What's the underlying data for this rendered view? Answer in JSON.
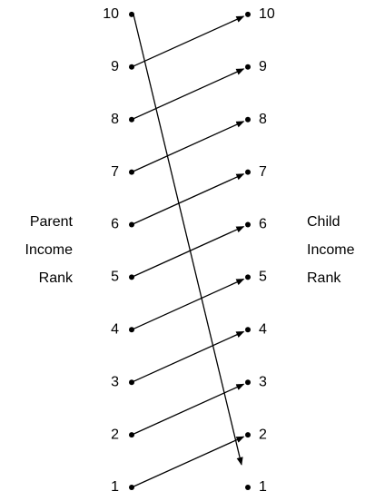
{
  "parent": {
    "label_lines": [
      "Parent",
      "Income",
      "Rank"
    ],
    "ranks": [
      "1",
      "2",
      "3",
      "4",
      "5",
      "6",
      "7",
      "8",
      "9",
      "10"
    ]
  },
  "child": {
    "label_lines": [
      "Child",
      "Income",
      "Rank"
    ],
    "ranks": [
      "1",
      "2",
      "3",
      "4",
      "5",
      "6",
      "7",
      "8",
      "9",
      "10"
    ]
  }
}
